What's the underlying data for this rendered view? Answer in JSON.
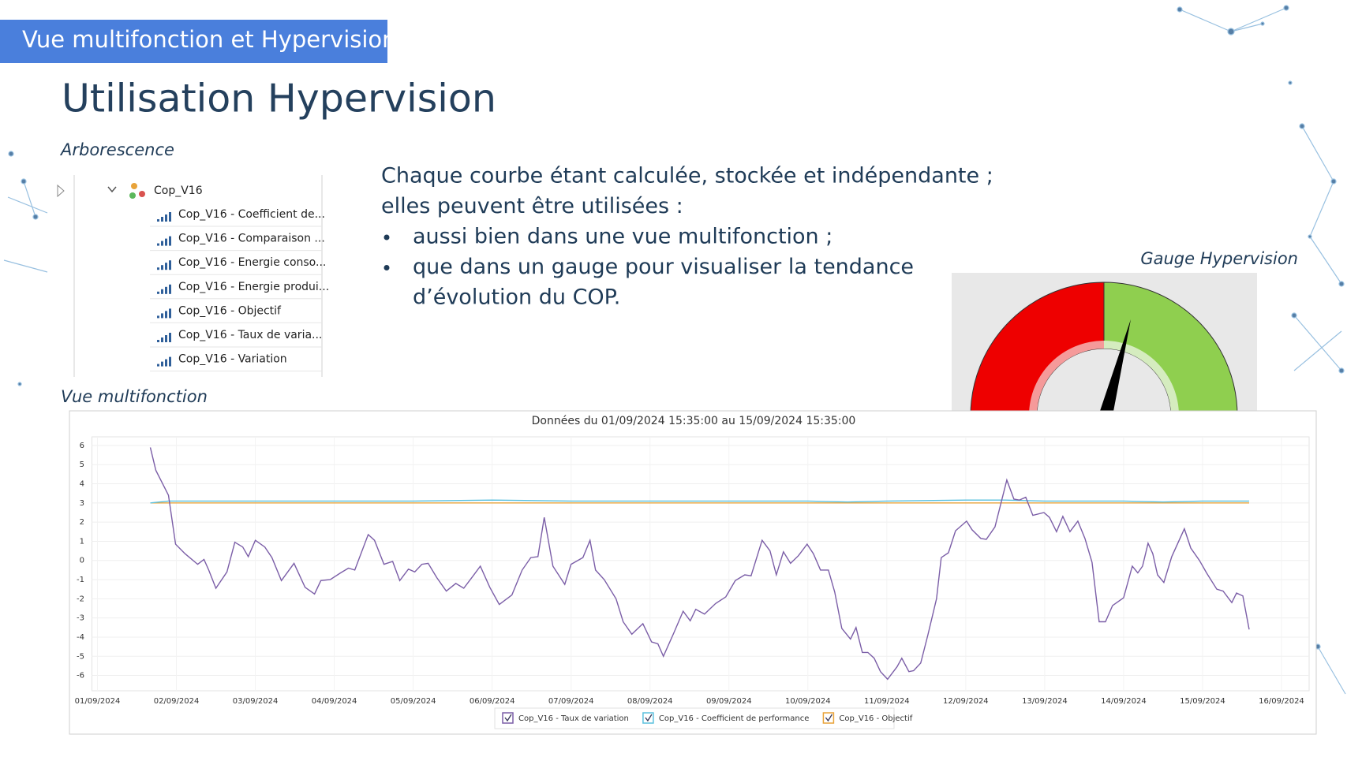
{
  "header": {
    "banner": "Vue multifonction et Hypervision",
    "title": "Utilisation Hypervision"
  },
  "tree": {
    "caption": "Arborescence",
    "root": "Cop_V16",
    "items": [
      "Cop_V16 - Coefficient de...",
      "Cop_V16 - Comparaison ...",
      "Cop_V16 - Energie conso...",
      "Cop_V16 - Energie produi...",
      "Cop_V16 - Objectif",
      "Cop_V16 - Taux de varia...",
      "Cop_V16 - Variation"
    ]
  },
  "text": {
    "lines": [
      "Chaque courbe étant calculée, stockée et indépendante ;",
      "elles peuvent être utilisées :"
    ],
    "bullets": [
      [
        "aussi bien dans une vue multifonction ;"
      ],
      [
        "que dans un gauge pour visualiser la tendance",
        "d’évolution du COP."
      ]
    ]
  },
  "gauge": {
    "caption": "Gauge Hypervision"
  },
  "chart_caption": "Vue multifonction",
  "chart_data": {
    "type": "line",
    "title": "Données du 01/09/2024 15:35:00 au 15/09/2024 15:35:00",
    "xlim": [
      -0.07,
      15.35
    ],
    "xticks": [
      {
        "value": 0,
        "label": "01/09/2024"
      },
      {
        "value": 1,
        "label": "02/09/2024"
      },
      {
        "value": 2,
        "label": "03/09/2024"
      },
      {
        "value": 3,
        "label": "04/09/2024"
      },
      {
        "value": 4,
        "label": "05/09/2024"
      },
      {
        "value": 5,
        "label": "06/09/2024"
      },
      {
        "value": 6,
        "label": "07/09/2024"
      },
      {
        "value": 7,
        "label": "08/09/2024"
      },
      {
        "value": 8,
        "label": "09/09/2024"
      },
      {
        "value": 9,
        "label": "10/09/2024"
      },
      {
        "value": 10,
        "label": "11/09/2024"
      },
      {
        "value": 11,
        "label": "12/09/2024"
      },
      {
        "value": 12,
        "label": "13/09/2024"
      },
      {
        "value": 13,
        "label": "14/09/2024"
      },
      {
        "value": 14,
        "label": "15/09/2024"
      },
      {
        "value": 15,
        "label": "16/09/2024"
      }
    ],
    "ylim": [
      -6.8,
      6.45
    ],
    "yticks": [
      6,
      5,
      4,
      3,
      2,
      1,
      0,
      -1,
      -2,
      -3,
      -4,
      -5,
      -6
    ],
    "grid": true,
    "series": [
      {
        "name": "Cop_V16 - Taux de variation",
        "color": "#7b5ea7",
        "x": [
          0.67,
          0.74,
          0.9,
          0.99,
          1.11,
          1.27,
          1.35,
          1.41,
          1.5,
          1.64,
          1.74,
          1.84,
          1.91,
          2.0,
          2.12,
          2.21,
          2.33,
          2.49,
          2.63,
          2.75,
          2.83,
          2.95,
          3.08,
          3.18,
          3.26,
          3.43,
          3.51,
          3.63,
          3.74,
          3.83,
          3.94,
          4.02,
          4.11,
          4.19,
          4.3,
          4.42,
          4.54,
          4.64,
          4.75,
          4.85,
          4.97,
          5.09,
          5.25,
          5.38,
          5.49,
          5.58,
          5.66,
          5.77,
          5.92,
          6.0,
          6.15,
          6.24,
          6.31,
          6.42,
          6.57,
          6.66,
          6.77,
          6.91,
          7.02,
          7.1,
          7.17,
          7.3,
          7.42,
          7.51,
          7.58,
          7.69,
          7.83,
          7.96,
          8.08,
          8.2,
          8.28,
          8.42,
          8.52,
          8.6,
          8.69,
          8.78,
          8.88,
          8.99,
          9.07,
          9.16,
          9.26,
          9.34,
          9.43,
          9.54,
          9.61,
          9.69,
          9.76,
          9.84,
          9.92,
          10.01,
          10.13,
          10.19,
          10.28,
          10.34,
          10.43,
          10.52,
          10.63,
          10.69,
          10.78,
          10.87,
          11.01,
          11.08,
          11.19,
          11.26,
          11.37,
          11.52,
          11.61,
          11.68,
          11.76,
          11.85,
          11.99,
          12.06,
          12.15,
          12.23,
          12.32,
          12.42,
          12.51,
          12.6,
          12.69,
          12.77,
          12.86,
          13.0,
          13.11,
          13.18,
          13.24,
          13.31,
          13.37,
          13.43,
          13.51,
          13.61,
          13.77,
          13.85,
          13.96,
          14.05,
          14.18,
          14.26,
          14.37,
          14.43,
          14.51,
          14.59
        ],
        "values": [
          5.9,
          4.7,
          3.4,
          0.85,
          0.35,
          -0.2,
          0.05,
          -0.5,
          -1.45,
          -0.6,
          0.95,
          0.7,
          0.2,
          1.05,
          0.7,
          0.15,
          -1.05,
          -0.15,
          -1.4,
          -1.75,
          -1.05,
          -1.0,
          -0.65,
          -0.4,
          -0.5,
          1.35,
          1.05,
          -0.2,
          -0.05,
          -1.05,
          -0.45,
          -0.6,
          -0.2,
          -0.15,
          -0.9,
          -1.6,
          -1.2,
          -1.45,
          -0.85,
          -0.3,
          -1.4,
          -2.3,
          -1.8,
          -0.5,
          0.15,
          0.2,
          2.25,
          -0.3,
          -1.25,
          -0.2,
          0.15,
          1.05,
          -0.5,
          -1.0,
          -2.0,
          -3.2,
          -3.85,
          -3.3,
          -4.25,
          -4.35,
          -5.0,
          -3.8,
          -2.65,
          -3.15,
          -2.55,
          -2.8,
          -2.25,
          -1.9,
          -1.05,
          -0.75,
          -0.8,
          1.05,
          0.5,
          -0.75,
          0.45,
          -0.15,
          0.25,
          0.85,
          0.35,
          -0.5,
          -0.5,
          -1.65,
          -3.55,
          -4.1,
          -3.5,
          -4.8,
          -4.8,
          -5.1,
          -5.8,
          -6.2,
          -5.55,
          -5.1,
          -5.8,
          -5.75,
          -5.35,
          -3.9,
          -2.0,
          0.15,
          0.4,
          1.55,
          2.05,
          1.6,
          1.15,
          1.1,
          1.75,
          4.2,
          3.2,
          3.15,
          3.3,
          2.35,
          2.5,
          2.25,
          1.5,
          2.3,
          1.5,
          2.05,
          1.15,
          -0.1,
          -3.2,
          -3.2,
          -2.35,
          -1.95,
          -0.3,
          -0.65,
          -0.3,
          0.9,
          0.35,
          -0.75,
          -1.15,
          0.2,
          1.65,
          0.65,
          0,
          -0.65,
          -1.5,
          -1.6,
          -2.2,
          -1.7,
          -1.85,
          -3.6
        ]
      },
      {
        "name": "Cop_V16 - Coefficient de performance",
        "color": "#5bc0de",
        "x": [
          0.67,
          0.9,
          1.3,
          2,
          3,
          4,
          5,
          6,
          7,
          8,
          9,
          9.5,
          10,
          11,
          11.5,
          12,
          12.5,
          13,
          13.5,
          14,
          14.59
        ],
        "values": [
          3,
          3.1,
          3.1,
          3.1,
          3.1,
          3.1,
          3.15,
          3.1,
          3.1,
          3.1,
          3.1,
          3.05,
          3.1,
          3.15,
          3.15,
          3.1,
          3.1,
          3.1,
          3.05,
          3.1,
          3.1
        ]
      },
      {
        "name": "Cop_V16 - Objectif",
        "color": "#e8a33a",
        "x": [
          0.67,
          14.59
        ],
        "values": [
          3,
          3
        ]
      }
    ]
  }
}
